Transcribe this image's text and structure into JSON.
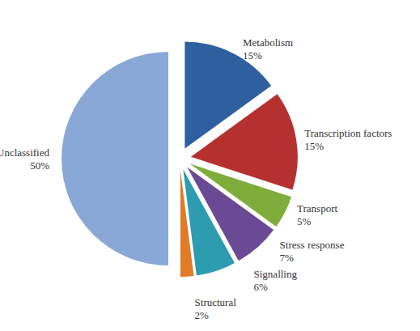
{
  "chart_data": {
    "type": "pie",
    "categories": [
      "Metabolism",
      "Transcription factors",
      "Transport",
      "Stress response",
      "Signalling",
      "Structural",
      "Unclassified"
    ],
    "values": [
      15,
      15,
      5,
      7,
      6,
      2,
      50
    ],
    "value_labels": [
      "15%",
      "15%",
      "5%",
      "7%",
      "6%",
      "2%",
      "50%"
    ],
    "colors": [
      "#2e5f9e",
      "#b5312f",
      "#7fad3c",
      "#6a4a94",
      "#2d9bb0",
      "#e07b27",
      "#8aa8d6"
    ],
    "data_labels": true
  }
}
